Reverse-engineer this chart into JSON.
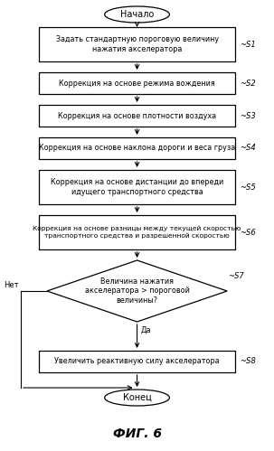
{
  "title": "ФИГ. 6",
  "background_color": "#ffffff",
  "start_text": "Начало",
  "end_text": "Конец",
  "s1_text": "Задать стандартную пороговую величину\nнажатия акселератора",
  "s2_text": "Коррекция на основе режима вождения",
  "s3_text": "Коррекция на основе плотности воздуха",
  "s4_text": "Коррекция на основе наклона дороги и веса груза",
  "s5_text": "Коррекция на основе дистанции до впереди\nидущего транспортного средства",
  "s6_text": "Коррекция на основе разницы между текущей скоростью\nтранспортного средства и разрешенной скоростью",
  "s7_text": "Величина нажатия\nакселератора > пороговой\nвеличины?",
  "s8_text": "Увеличить реактивную силу акселератора",
  "yes_text": "Да",
  "no_text": "Нет",
  "labels": [
    "S1",
    "S2",
    "S3",
    "S4",
    "S5",
    "S6",
    "S7",
    "S8"
  ]
}
